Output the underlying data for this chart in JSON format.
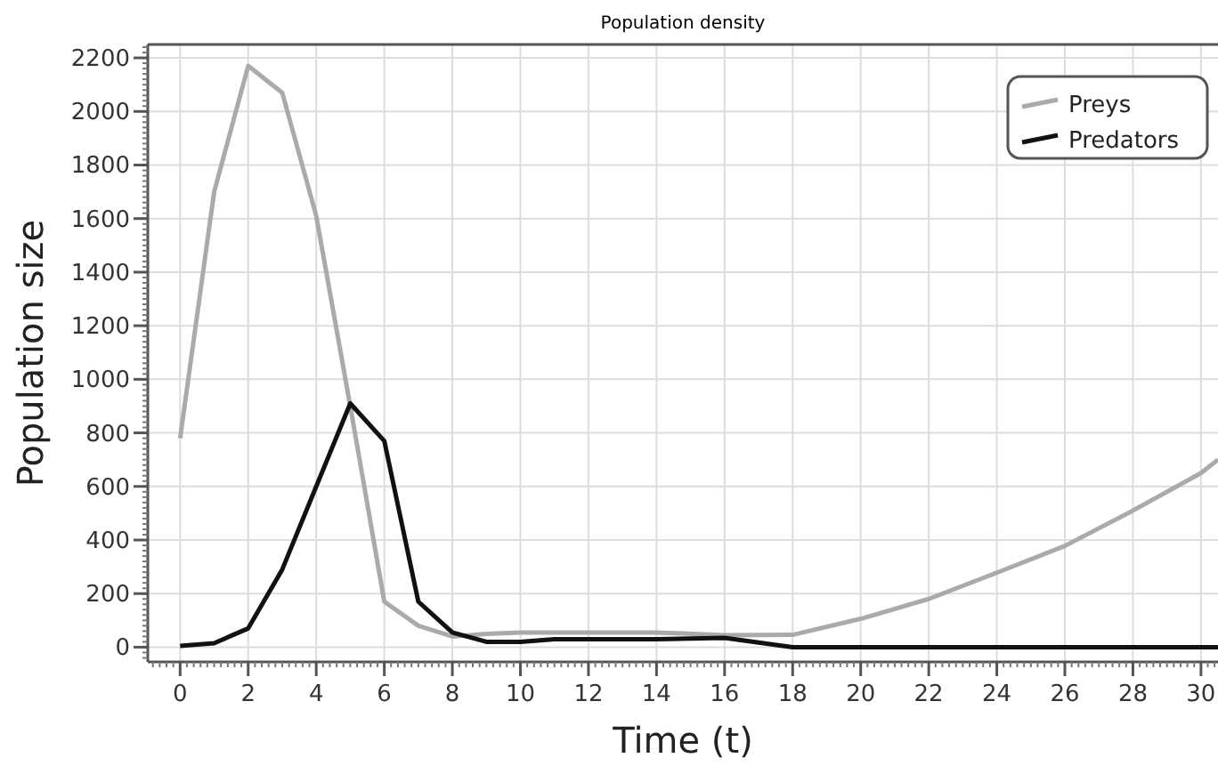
{
  "chart_data": {
    "type": "line",
    "title": "Population density",
    "xlabel": "Time (t)",
    "ylabel": "Population size",
    "xlim": [
      -0.95,
      30.5
    ],
    "xticks": [
      0,
      2,
      4,
      6,
      8,
      10,
      12,
      14,
      16,
      18,
      20,
      22,
      24,
      26,
      28,
      30
    ],
    "ylim": [
      -55,
      2250
    ],
    "yticks": [
      0,
      200,
      400,
      600,
      800,
      1000,
      1200,
      1400,
      1600,
      1800,
      2000,
      2200
    ],
    "grid": true,
    "legend": "top right",
    "marker": "none",
    "line_style": "solid",
    "series": [
      {
        "name": "Preys",
        "color": "#aaaaaa",
        "x": [
          0,
          1,
          2,
          3,
          4,
          5,
          6,
          7,
          8,
          9,
          10,
          12,
          14,
          16,
          18,
          20,
          22,
          24,
          26,
          28,
          30,
          30.5
        ],
        "values": [
          780,
          1700,
          2170,
          2070,
          1610,
          900,
          170,
          80,
          40,
          50,
          55,
          55,
          55,
          45,
          46,
          106,
          180,
          278,
          378,
          510,
          650,
          700
        ]
      },
      {
        "name": "Predators",
        "color": "#111111",
        "x": [
          0,
          1,
          2,
          3,
          4,
          5,
          6,
          7,
          8,
          9,
          10,
          11,
          12,
          14,
          16,
          18,
          20,
          22,
          24,
          26,
          28,
          30,
          30.5
        ],
        "values": [
          5,
          15,
          70,
          290,
          600,
          910,
          770,
          170,
          55,
          20,
          20,
          30,
          30,
          30,
          35,
          0,
          0,
          0,
          0,
          0,
          0,
          0,
          0
        ]
      }
    ]
  }
}
